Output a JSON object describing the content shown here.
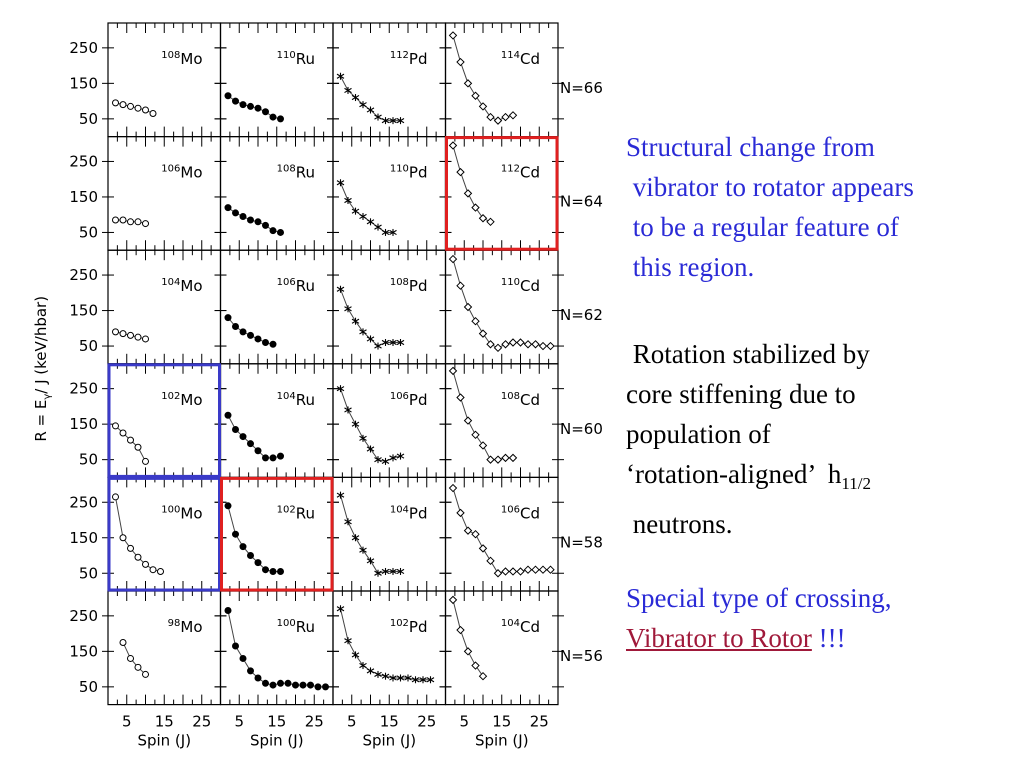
{
  "chart_data": {
    "type": "scatter",
    "ylabel_main": "R = E",
    "ylabel_sub": "γ",
    "ylabel_rest": "/ J (keV/hbar)",
    "xlabel": "Spin (J)",
    "xticks": [
      5,
      15,
      25
    ],
    "yticks": [
      50,
      150,
      250
    ],
    "xlim": [
      0,
      30
    ],
    "ylim": [
      0,
      320
    ],
    "rows": [
      {
        "n_label": "N=66",
        "panels": [
          {
            "nucleus_mass": "108",
            "nucleus_symbol": "Mo",
            "marker": "open-circle",
            "x": [
              2,
              4,
              6,
              8,
              10,
              12
            ],
            "y": [
              95,
              90,
              85,
              80,
              75,
              65
            ]
          },
          {
            "nucleus_mass": "110",
            "nucleus_symbol": "Ru",
            "marker": "filled-circle",
            "x": [
              2,
              4,
              6,
              8,
              10,
              12,
              14,
              16
            ],
            "y": [
              115,
              100,
              90,
              85,
              80,
              70,
              55,
              50
            ]
          },
          {
            "nucleus_mass": "112",
            "nucleus_symbol": "Pd",
            "marker": "star",
            "x": [
              2,
              4,
              6,
              8,
              10,
              12,
              14,
              16,
              18
            ],
            "y": [
              170,
              130,
              110,
              90,
              75,
              55,
              45,
              45,
              45
            ]
          },
          {
            "nucleus_mass": "114",
            "nucleus_symbol": "Cd",
            "marker": "open-diamond",
            "x": [
              2,
              4,
              6,
              8,
              10,
              12,
              14,
              16,
              18
            ],
            "y": [
              285,
              210,
              150,
              115,
              85,
              55,
              45,
              55,
              60
            ]
          }
        ]
      },
      {
        "n_label": "N=64",
        "panels": [
          {
            "nucleus_mass": "106",
            "nucleus_symbol": "Mo",
            "marker": "open-circle",
            "x": [
              2,
              4,
              6,
              8,
              10
            ],
            "y": [
              85,
              85,
              80,
              80,
              75
            ]
          },
          {
            "nucleus_mass": "108",
            "nucleus_symbol": "Ru",
            "marker": "filled-circle",
            "x": [
              2,
              4,
              6,
              8,
              10,
              12,
              14,
              16
            ],
            "y": [
              120,
              105,
              95,
              85,
              80,
              70,
              55,
              50
            ]
          },
          {
            "nucleus_mass": "110",
            "nucleus_symbol": "Pd",
            "marker": "star",
            "x": [
              2,
              4,
              6,
              8,
              10,
              12,
              14,
              16
            ],
            "y": [
              190,
              140,
              110,
              95,
              80,
              65,
              50,
              50
            ]
          },
          {
            "nucleus_mass": "112",
            "nucleus_symbol": "Cd",
            "marker": "open-diamond",
            "x": [
              2,
              4,
              6,
              8,
              10,
              12
            ],
            "y": [
              295,
              220,
              160,
              120,
              90,
              80
            ]
          }
        ]
      },
      {
        "n_label": "N=62",
        "panels": [
          {
            "nucleus_mass": "104",
            "nucleus_symbol": "Mo",
            "marker": "open-circle",
            "x": [
              2,
              4,
              6,
              8,
              10
            ],
            "y": [
              90,
              85,
              80,
              75,
              70
            ]
          },
          {
            "nucleus_mass": "106",
            "nucleus_symbol": "Ru",
            "marker": "filled-circle",
            "x": [
              2,
              4,
              6,
              8,
              10,
              12,
              14
            ],
            "y": [
              130,
              105,
              90,
              80,
              70,
              60,
              55
            ]
          },
          {
            "nucleus_mass": "108",
            "nucleus_symbol": "Pd",
            "marker": "star",
            "x": [
              2,
              4,
              6,
              8,
              10,
              12,
              14,
              16,
              18
            ],
            "y": [
              210,
              155,
              120,
              90,
              70,
              50,
              60,
              60,
              60
            ]
          },
          {
            "nucleus_mass": "110",
            "nucleus_symbol": "Cd",
            "marker": "open-diamond",
            "x": [
              2,
              4,
              6,
              8,
              10,
              12,
              14,
              16,
              18,
              20,
              22,
              24,
              26,
              28
            ],
            "y": [
              295,
              220,
              160,
              120,
              85,
              55,
              45,
              55,
              60,
              60,
              55,
              55,
              50,
              50
            ]
          }
        ]
      },
      {
        "n_label": "N=60",
        "panels": [
          {
            "nucleus_mass": "102",
            "nucleus_symbol": "Mo",
            "marker": "open-circle",
            "x": [
              2,
              4,
              6,
              8,
              10
            ],
            "y": [
              145,
              125,
              105,
              85,
              45
            ]
          },
          {
            "nucleus_mass": "104",
            "nucleus_symbol": "Ru",
            "marker": "filled-circle",
            "x": [
              2,
              4,
              6,
              8,
              10,
              12,
              14,
              16
            ],
            "y": [
              175,
              135,
              115,
              95,
              75,
              55,
              55,
              60
            ]
          },
          {
            "nucleus_mass": "106",
            "nucleus_symbol": "Pd",
            "marker": "star",
            "x": [
              2,
              4,
              6,
              8,
              10,
              12,
              14,
              16,
              18
            ],
            "y": [
              250,
              190,
              150,
              110,
              80,
              50,
              45,
              55,
              60
            ]
          },
          {
            "nucleus_mass": "108",
            "nucleus_symbol": "Cd",
            "marker": "open-diamond",
            "x": [
              2,
              4,
              6,
              8,
              10,
              12,
              14,
              16,
              18
            ],
            "y": [
              300,
              225,
              160,
              120,
              90,
              50,
              50,
              55,
              55
            ]
          }
        ]
      },
      {
        "n_label": "N=58",
        "panels": [
          {
            "nucleus_mass": "100",
            "nucleus_symbol": "Mo",
            "marker": "open-circle",
            "x": [
              2,
              4,
              6,
              8,
              10,
              12,
              14
            ],
            "y": [
              265,
              150,
              120,
              95,
              75,
              60,
              55
            ]
          },
          {
            "nucleus_mass": "102",
            "nucleus_symbol": "Ru",
            "marker": "filled-circle",
            "x": [
              2,
              4,
              6,
              8,
              10,
              12,
              14,
              16
            ],
            "y": [
              240,
              160,
              125,
              100,
              80,
              60,
              55,
              55
            ]
          },
          {
            "nucleus_mass": "104",
            "nucleus_symbol": "Pd",
            "marker": "star",
            "x": [
              2,
              4,
              6,
              8,
              10,
              12,
              14,
              16,
              18
            ],
            "y": [
              270,
              195,
              150,
              115,
              85,
              50,
              55,
              55,
              55
            ]
          },
          {
            "nucleus_mass": "106",
            "nucleus_symbol": "Cd",
            "marker": "open-diamond",
            "x": [
              2,
              4,
              6,
              8,
              10,
              12,
              14,
              16,
              18,
              20,
              22,
              24,
              26,
              28
            ],
            "y": [
              290,
              220,
              170,
              160,
              120,
              85,
              50,
              55,
              55,
              55,
              60,
              60,
              60,
              60
            ]
          }
        ]
      },
      {
        "n_label": "N=56",
        "panels": [
          {
            "nucleus_mass": "98",
            "nucleus_symbol": "Mo",
            "marker": "open-circle",
            "x": [
              4,
              6,
              8,
              10
            ],
            "y": [
              175,
              130,
              105,
              85
            ]
          },
          {
            "nucleus_mass": "100",
            "nucleus_symbol": "Ru",
            "marker": "filled-circle",
            "x": [
              2,
              4,
              6,
              8,
              10,
              12,
              14,
              16,
              18,
              20,
              22,
              24,
              26,
              28
            ],
            "y": [
              265,
              165,
              130,
              95,
              75,
              60,
              55,
              60,
              60,
              55,
              55,
              55,
              50,
              50
            ]
          },
          {
            "nucleus_mass": "102",
            "nucleus_symbol": "Pd",
            "marker": "star",
            "x": [
              2,
              4,
              6,
              8,
              10,
              12,
              14,
              16,
              18,
              20,
              22,
              24,
              26
            ],
            "y": [
              270,
              180,
              140,
              110,
              95,
              85,
              80,
              75,
              75,
              75,
              70,
              70,
              70
            ]
          },
          {
            "nucleus_mass": "104",
            "nucleus_symbol": "Cd",
            "marker": "open-diamond",
            "x": [
              2,
              4,
              6,
              8,
              10
            ],
            "y": [
              295,
              210,
              150,
              110,
              80
            ]
          }
        ]
      }
    ],
    "highlights": [
      {
        "row": 1,
        "col": 3,
        "color": "#e02020"
      },
      {
        "row": 3,
        "col": 0,
        "color": "#3a3ac8"
      },
      {
        "row": 4,
        "col": 0,
        "color": "#3a3ac8"
      },
      {
        "row": 4,
        "col": 1,
        "color": "#e02020"
      }
    ]
  },
  "notes": {
    "note1": [
      "Structural change from",
      " vibrator to rotator appears",
      " to be a regular feature of",
      " this region."
    ],
    "note2_lines": [
      " Rotation stabilized by",
      "core stiffening due to",
      "population of"
    ],
    "note2_h_line_prefix": "‘rotation-aligned’  h",
    "note2_h_sub": "11/2",
    "note2_last": " neutrons.",
    "note3_line1": "Special type of crossing,",
    "note3_link": "Vibrator to Rotor",
    "note3_suffix": " !!!"
  },
  "colors": {
    "text_blue": "#2a2ad6",
    "link_red": "#a0193a",
    "box_red": "#e02020",
    "box_blue": "#3a3ac8"
  }
}
